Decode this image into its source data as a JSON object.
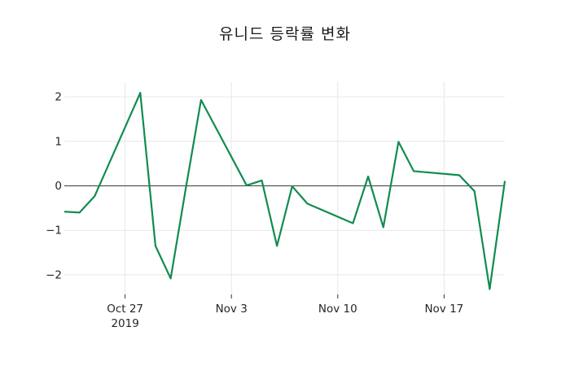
{
  "chart_data": {
    "type": "line",
    "title": "유니드 등락률 변화",
    "xlabel": "",
    "ylabel": "",
    "grid": true,
    "legend": "none",
    "zero_line": true,
    "x_range": [
      "2019-10-23",
      "2019-11-21"
    ],
    "ylim": [
      -2.44,
      2.33
    ],
    "x_ticks": [
      {
        "date": "2019-10-27",
        "label": "Oct 27",
        "sublabel": "2019"
      },
      {
        "date": "2019-11-03",
        "label": "Nov 3",
        "sublabel": ""
      },
      {
        "date": "2019-11-10",
        "label": "Nov 10",
        "sublabel": ""
      },
      {
        "date": "2019-11-17",
        "label": "Nov 17",
        "sublabel": ""
      }
    ],
    "y_ticks": [
      {
        "value": 2,
        "label": "2"
      },
      {
        "value": 1,
        "label": "1"
      },
      {
        "value": 0,
        "label": "0"
      },
      {
        "value": -1,
        "label": "−1"
      },
      {
        "value": -2,
        "label": "−2"
      }
    ],
    "series": [
      {
        "name": "등락률",
        "color": "#108c50",
        "points": [
          {
            "date": "2019-10-23",
            "value": -0.58
          },
          {
            "date": "2019-10-24",
            "value": -0.6
          },
          {
            "date": "2019-10-25",
            "value": -0.23
          },
          {
            "date": "2019-10-28",
            "value": 2.09
          },
          {
            "date": "2019-10-29",
            "value": -1.35
          },
          {
            "date": "2019-10-30",
            "value": -2.08
          },
          {
            "date": "2019-10-31",
            "value": -0.05
          },
          {
            "date": "2019-11-01",
            "value": 1.93
          },
          {
            "date": "2019-11-04",
            "value": 0.01
          },
          {
            "date": "2019-11-05",
            "value": 0.12
          },
          {
            "date": "2019-11-06",
            "value": -1.35
          },
          {
            "date": "2019-11-07",
            "value": -0.01
          },
          {
            "date": "2019-11-08",
            "value": -0.4
          },
          {
            "date": "2019-11-11",
            "value": -0.84
          },
          {
            "date": "2019-11-12",
            "value": 0.21
          },
          {
            "date": "2019-11-13",
            "value": -0.93
          },
          {
            "date": "2019-11-14",
            "value": 0.99
          },
          {
            "date": "2019-11-15",
            "value": 0.33
          },
          {
            "date": "2019-11-18",
            "value": 0.24
          },
          {
            "date": "2019-11-19",
            "value": -0.12
          },
          {
            "date": "2019-11-20",
            "value": -2.32
          },
          {
            "date": "2019-11-21",
            "value": 0.11
          }
        ]
      }
    ],
    "colors": {
      "line": "#108c50",
      "grid": "#e7e7e7",
      "zero_line": "#3a3a3a",
      "tick_mark": "#333333",
      "tick_text": "#262626",
      "title_text": "#1a1a1a",
      "background": "#ffffff"
    }
  }
}
